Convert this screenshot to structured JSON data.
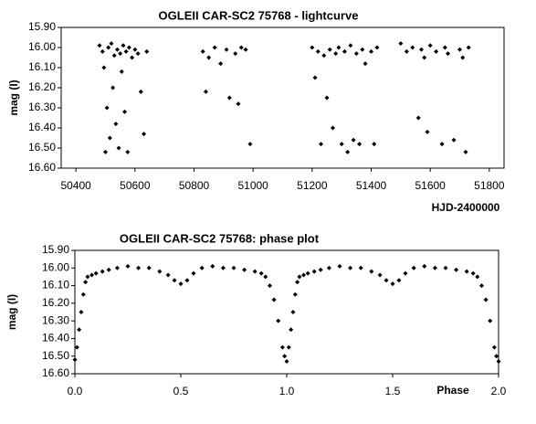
{
  "chart_data": [
    {
      "type": "scatter",
      "title": "OGLEII CAR-SC2 75768 - lightcurve",
      "x_label": "HJD-2400000",
      "y_label": "mag (I)",
      "color": "#000000",
      "y_reversed": true,
      "xlim": [
        50350,
        51850
      ],
      "xticks": [
        50400,
        50600,
        50800,
        51000,
        51200,
        51400,
        51600,
        51800
      ],
      "ylim": [
        15.9,
        16.6
      ],
      "yticks": [
        {
          "value": 15.9,
          "label": "15.90"
        },
        {
          "value": 16.0,
          "label": "16.00"
        },
        {
          "value": 16.1,
          "label": "16.10"
        },
        {
          "value": 16.2,
          "label": "16.20"
        },
        {
          "value": 16.3,
          "label": "16.30"
        },
        {
          "value": 16.4,
          "label": "16.40"
        },
        {
          "value": 16.5,
          "label": "16.50"
        },
        {
          "value": 16.6,
          "label": "16.60"
        }
      ],
      "x": [
        50480,
        50490,
        50495,
        50500,
        50505,
        50510,
        50515,
        50520,
        50525,
        50530,
        50535,
        50540,
        50545,
        50550,
        50555,
        50560,
        50565,
        50570,
        50575,
        50580,
        50590,
        50600,
        50610,
        50620,
        50630,
        50640,
        50830,
        50840,
        50850,
        50870,
        50890,
        50910,
        50920,
        50940,
        50950,
        50960,
        50975,
        50990,
        51200,
        51210,
        51220,
        51230,
        51240,
        51250,
        51260,
        51270,
        51280,
        51290,
        51300,
        51310,
        51320,
        51330,
        51340,
        51350,
        51360,
        51370,
        51380,
        51400,
        51410,
        51420,
        51500,
        51520,
        51540,
        51560,
        51570,
        51580,
        51590,
        51600,
        51620,
        51640,
        51650,
        51660,
        51680,
        51700,
        51710,
        51720,
        51730
      ],
      "values": [
        15.99,
        16.02,
        16.1,
        16.52,
        16.3,
        16.0,
        16.45,
        15.98,
        16.2,
        16.04,
        16.38,
        16.01,
        16.5,
        16.03,
        16.12,
        15.99,
        16.32,
        16.02,
        16.52,
        16.0,
        16.05,
        16.01,
        16.03,
        16.22,
        16.43,
        16.02,
        16.02,
        16.22,
        16.05,
        16.0,
        16.08,
        16.01,
        16.25,
        16.03,
        16.28,
        16.0,
        16.01,
        16.48,
        16.0,
        16.15,
        16.02,
        16.48,
        16.04,
        16.25,
        16.01,
        16.4,
        16.03,
        16.0,
        16.48,
        16.02,
        16.52,
        15.99,
        16.46,
        16.03,
        16.48,
        16.01,
        16.08,
        16.02,
        16.48,
        16.0,
        15.98,
        16.02,
        16.0,
        16.35,
        16.01,
        16.05,
        16.42,
        15.99,
        16.02,
        16.48,
        16.0,
        16.03,
        16.46,
        16.01,
        16.05,
        16.52,
        16.0
      ]
    },
    {
      "type": "scatter",
      "title": "OGLEII CAR-SC2 75768: phase plot",
      "x_label": "Phase",
      "y_label": "mag (I)",
      "color": "#000000",
      "y_reversed": true,
      "xlim": [
        0,
        2
      ],
      "xticks": [
        {
          "value": 0,
          "label": "0.0"
        },
        0.5,
        {
          "value": 1,
          "label": "1.0"
        },
        1.5,
        {
          "value": 2,
          "label": "2.0"
        }
      ],
      "ylim": [
        15.9,
        16.6
      ],
      "yticks": [
        {
          "value": 15.9,
          "label": "15.90"
        },
        {
          "value": 16.0,
          "label": "16.00"
        },
        {
          "value": 16.1,
          "label": "16.10"
        },
        {
          "value": 16.2,
          "label": "16.20"
        },
        {
          "value": 16.3,
          "label": "16.30"
        },
        {
          "value": 16.4,
          "label": "16.40"
        },
        {
          "value": 16.5,
          "label": "16.50"
        },
        {
          "value": 16.6,
          "label": "16.60"
        }
      ],
      "x": [
        0.0,
        0.01,
        0.02,
        0.03,
        0.04,
        0.05,
        0.06,
        0.08,
        0.1,
        0.13,
        0.16,
        0.2,
        0.25,
        0.3,
        0.35,
        0.4,
        0.44,
        0.47,
        0.5,
        0.53,
        0.56,
        0.6,
        0.65,
        0.7,
        0.75,
        0.8,
        0.85,
        0.88,
        0.9,
        0.92,
        0.94,
        0.96,
        0.98,
        0.99,
        1.0,
        1.01,
        1.02,
        1.03,
        1.04,
        1.05,
        1.06,
        1.08,
        1.1,
        1.13,
        1.16,
        1.2,
        1.25,
        1.3,
        1.35,
        1.4,
        1.44,
        1.47,
        1.5,
        1.53,
        1.56,
        1.6,
        1.65,
        1.7,
        1.75,
        1.8,
        1.85,
        1.88,
        1.9,
        1.92,
        1.94,
        1.96,
        1.98,
        1.99,
        2.0
      ],
      "values": [
        16.52,
        16.45,
        16.35,
        16.25,
        16.15,
        16.08,
        16.05,
        16.04,
        16.03,
        16.02,
        16.01,
        16.0,
        15.99,
        16.0,
        16.0,
        16.02,
        16.04,
        16.07,
        16.09,
        16.07,
        16.03,
        16.0,
        15.99,
        16.0,
        16.0,
        16.01,
        16.02,
        16.03,
        16.05,
        16.1,
        16.18,
        16.3,
        16.45,
        16.5,
        16.53,
        16.45,
        16.35,
        16.25,
        16.15,
        16.08,
        16.05,
        16.04,
        16.03,
        16.02,
        16.01,
        16.0,
        15.99,
        16.0,
        16.0,
        16.02,
        16.04,
        16.07,
        16.09,
        16.07,
        16.03,
        16.0,
        15.99,
        16.0,
        16.0,
        16.01,
        16.02,
        16.03,
        16.05,
        16.1,
        16.18,
        16.3,
        16.45,
        16.5,
        16.53
      ]
    }
  ]
}
